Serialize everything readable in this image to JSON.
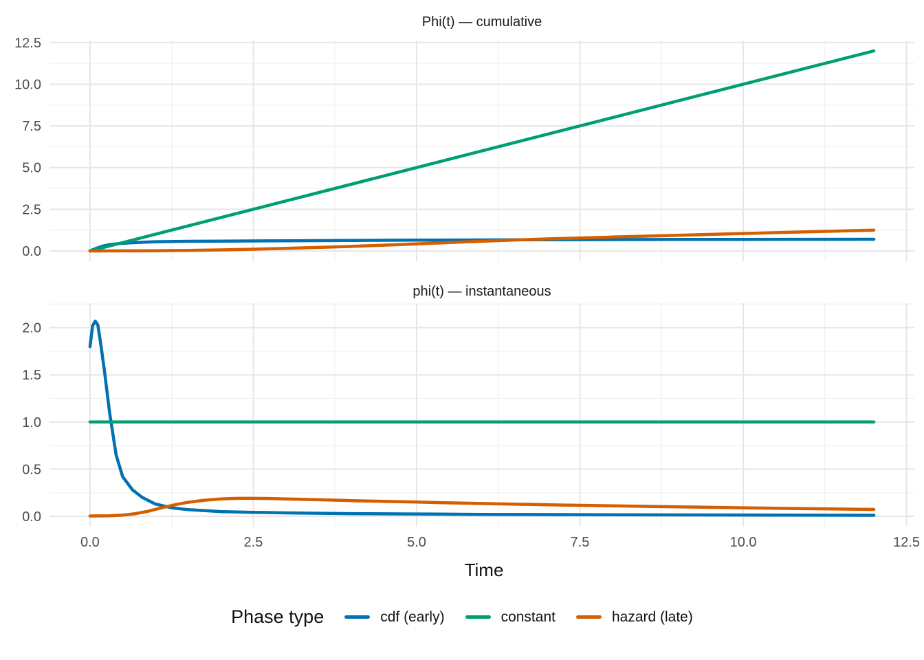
{
  "chart_data": {
    "type": "line",
    "grid": "major+minor",
    "legend_position": "bottom",
    "x_axis": {
      "title": "Time",
      "range": [
        -0.62,
        12.62
      ],
      "ticks": [
        0,
        2.5,
        5,
        7.5,
        10,
        12.5
      ],
      "tick_labels": [
        "0.0",
        "2.5",
        "5.0",
        "7.5",
        "10.0",
        "12.5"
      ],
      "minor_ticks": [
        1.25,
        3.75,
        6.25,
        8.75,
        11.25
      ]
    },
    "legend": {
      "title": "Phase type",
      "entries": [
        {
          "label": "cdf (early)",
          "color": "#0072B2"
        },
        {
          "label": "constant",
          "color": "#009E73"
        },
        {
          "label": "hazard (late)",
          "color": "#D55E00"
        }
      ]
    },
    "facets": [
      {
        "title": "Phi(t) — cumulative",
        "ylim": [
          -0.62,
          12.62
        ],
        "y_axis": {
          "ticks": [
            0,
            2.5,
            5,
            7.5,
            10,
            12.5
          ],
          "tick_labels": [
            "0.0",
            "2.5",
            "5.0",
            "7.5",
            "10.0",
            "12.5"
          ],
          "minor_ticks": [
            1.25,
            3.75,
            6.25,
            8.75,
            11.25
          ]
        },
        "series": [
          {
            "name": "cdf (early)",
            "color": "#0072B2",
            "x": [
              0,
              0.05,
              0.1,
              0.2,
              0.3,
              0.45,
              0.6,
              0.8,
              1,
              1.5,
              2,
              3,
              4,
              5,
              6,
              7,
              8,
              9,
              10,
              11,
              12
            ],
            "y": [
              0,
              0.08,
              0.16,
              0.29,
              0.38,
              0.44,
              0.48,
              0.52,
              0.55,
              0.575,
              0.59,
              0.61,
              0.625,
              0.645,
              0.66,
              0.672,
              0.68,
              0.687,
              0.692,
              0.697,
              0.7
            ]
          },
          {
            "name": "constant",
            "color": "#009E73",
            "x": [
              0,
              12
            ],
            "y": [
              0,
              12
            ]
          },
          {
            "name": "hazard (late)",
            "color": "#D55E00",
            "x": [
              0,
              0.5,
              1,
              1.5,
              2,
              2.5,
              3,
              3.5,
              4,
              4.5,
              5,
              5.5,
              6,
              6.5,
              7,
              8,
              9,
              10,
              11,
              12
            ],
            "y": [
              0,
              0.002,
              0.01,
              0.03,
              0.06,
              0.1,
              0.15,
              0.21,
              0.27,
              0.345,
              0.42,
              0.5,
              0.58,
              0.655,
              0.72,
              0.83,
              0.94,
              1.045,
              1.15,
              1.25
            ]
          }
        ]
      },
      {
        "title": "phi(t) — instantaneous",
        "ylim": [
          -0.11,
          2.26
        ],
        "y_axis": {
          "ticks": [
            0,
            0.5,
            1,
            1.5,
            2
          ],
          "tick_labels": [
            "0.0",
            "0.5",
            "1.0",
            "1.5",
            "2.0"
          ],
          "minor_ticks": [
            0.25,
            0.75,
            1.25,
            1.75,
            2.25
          ]
        },
        "series": [
          {
            "name": "cdf (early)",
            "color": "#0072B2",
            "x": [
              0,
              0.04,
              0.08,
              0.12,
              0.16,
              0.22,
              0.3,
              0.4,
              0.5,
              0.65,
              0.8,
              1,
              1.25,
              1.5,
              2,
              2.5,
              3,
              4,
              5,
              6,
              8,
              10,
              12
            ],
            "y": [
              1.8,
              2.02,
              2.07,
              2.03,
              1.85,
              1.55,
              1.1,
              0.65,
              0.42,
              0.28,
              0.2,
              0.13,
              0.09,
              0.07,
              0.05,
              0.042,
              0.036,
              0.028,
              0.024,
              0.02,
              0.016,
              0.013,
              0.01
            ]
          },
          {
            "name": "constant",
            "color": "#009E73",
            "x": [
              0,
              12
            ],
            "y": [
              1,
              1
            ]
          },
          {
            "name": "hazard (late)",
            "color": "#D55E00",
            "x": [
              0,
              0.3,
              0.5,
              0.7,
              0.9,
              1.1,
              1.3,
              1.5,
              1.75,
              2,
              2.25,
              2.5,
              2.75,
              3,
              3.5,
              4,
              4.5,
              5,
              6,
              7,
              8,
              9,
              10,
              11,
              12
            ],
            "y": [
              0.003,
              0.005,
              0.012,
              0.028,
              0.055,
              0.09,
              0.122,
              0.148,
              0.17,
              0.183,
              0.19,
              0.19,
              0.188,
              0.184,
              0.175,
              0.166,
              0.158,
              0.15,
              0.135,
              0.122,
              0.11,
              0.1,
              0.09,
              0.08,
              0.072
            ]
          }
        ]
      }
    ],
    "style": {
      "grid_major_color": "#E6E6E6",
      "grid_minor_color": "#F2F2F2",
      "tick_label_color": "#4D4D4D",
      "title_color": "#1A1A1A",
      "line_width": 4.5
    }
  }
}
